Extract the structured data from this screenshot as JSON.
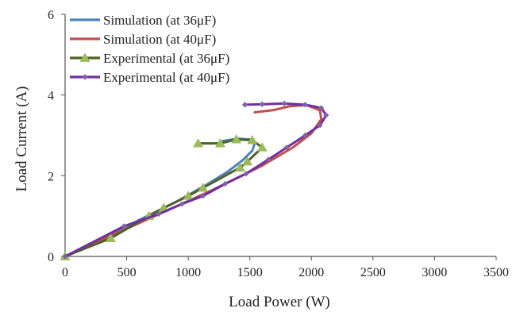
{
  "chart_data": {
    "type": "line",
    "title": "",
    "xlabel": "Load  Power (W)",
    "ylabel": "Load  Current (A)",
    "xlim": [
      0,
      3500
    ],
    "ylim": [
      0,
      6
    ],
    "xticks": [
      "0",
      "500",
      "1000",
      "1500",
      "2000",
      "2500",
      "3000",
      "3500"
    ],
    "yticks": [
      "0",
      "2",
      "4",
      "6"
    ],
    "grid": false,
    "legend_position": "top-left",
    "series": [
      {
        "name": "Simulation (at 36μF)",
        "color": "#4f81bd",
        "marker": "none",
        "points": [
          [
            0,
            0
          ],
          [
            300,
            0.42
          ],
          [
            600,
            0.9
          ],
          [
            900,
            1.35
          ],
          [
            1150,
            1.78
          ],
          [
            1320,
            2.1
          ],
          [
            1440,
            2.38
          ],
          [
            1520,
            2.62
          ],
          [
            1540,
            2.8
          ],
          [
            1500,
            2.9
          ],
          [
            1400,
            2.92
          ],
          [
            1280,
            2.86
          ]
        ]
      },
      {
        "name": "Simulation (at 40μF)",
        "color": "#c0504d",
        "marker": "none",
        "points": [
          [
            0,
            0
          ],
          [
            400,
            0.55
          ],
          [
            800,
            1.1
          ],
          [
            1200,
            1.65
          ],
          [
            1600,
            2.25
          ],
          [
            1850,
            2.7
          ],
          [
            2000,
            3.05
          ],
          [
            2080,
            3.4
          ],
          [
            2070,
            3.62
          ],
          [
            1960,
            3.75
          ],
          [
            1820,
            3.72
          ],
          [
            1700,
            3.63
          ],
          [
            1540,
            3.57
          ]
        ]
      },
      {
        "name": "Experimental (at 36μF)",
        "color": "#4f6228",
        "marker": "triangle",
        "marker_color": "#9bbb59",
        "points": [
          [
            0,
            0
          ],
          [
            370,
            0.45
          ],
          [
            680,
            1.0
          ],
          [
            800,
            1.2
          ],
          [
            1000,
            1.5
          ],
          [
            1120,
            1.7
          ],
          [
            1420,
            2.2
          ],
          [
            1480,
            2.35
          ],
          [
            1600,
            2.7
          ],
          [
            1520,
            2.88
          ],
          [
            1390,
            2.9
          ],
          [
            1260,
            2.8
          ],
          [
            1080,
            2.8
          ]
        ]
      },
      {
        "name": "Experimental (at 40μF)",
        "color": "#7030a0",
        "marker": "diamond",
        "marker_color": "#8064a2",
        "points": [
          [
            0,
            0
          ],
          [
            480,
            0.75
          ],
          [
            760,
            1.05
          ],
          [
            950,
            1.3
          ],
          [
            1120,
            1.5
          ],
          [
            1300,
            1.8
          ],
          [
            1470,
            2.05
          ],
          [
            1650,
            2.4
          ],
          [
            1800,
            2.7
          ],
          [
            1950,
            3.0
          ],
          [
            2070,
            3.25
          ],
          [
            2120,
            3.5
          ],
          [
            2080,
            3.68
          ],
          [
            1950,
            3.76
          ],
          [
            1780,
            3.79
          ],
          [
            1600,
            3.77
          ],
          [
            1460,
            3.76
          ]
        ]
      }
    ]
  }
}
